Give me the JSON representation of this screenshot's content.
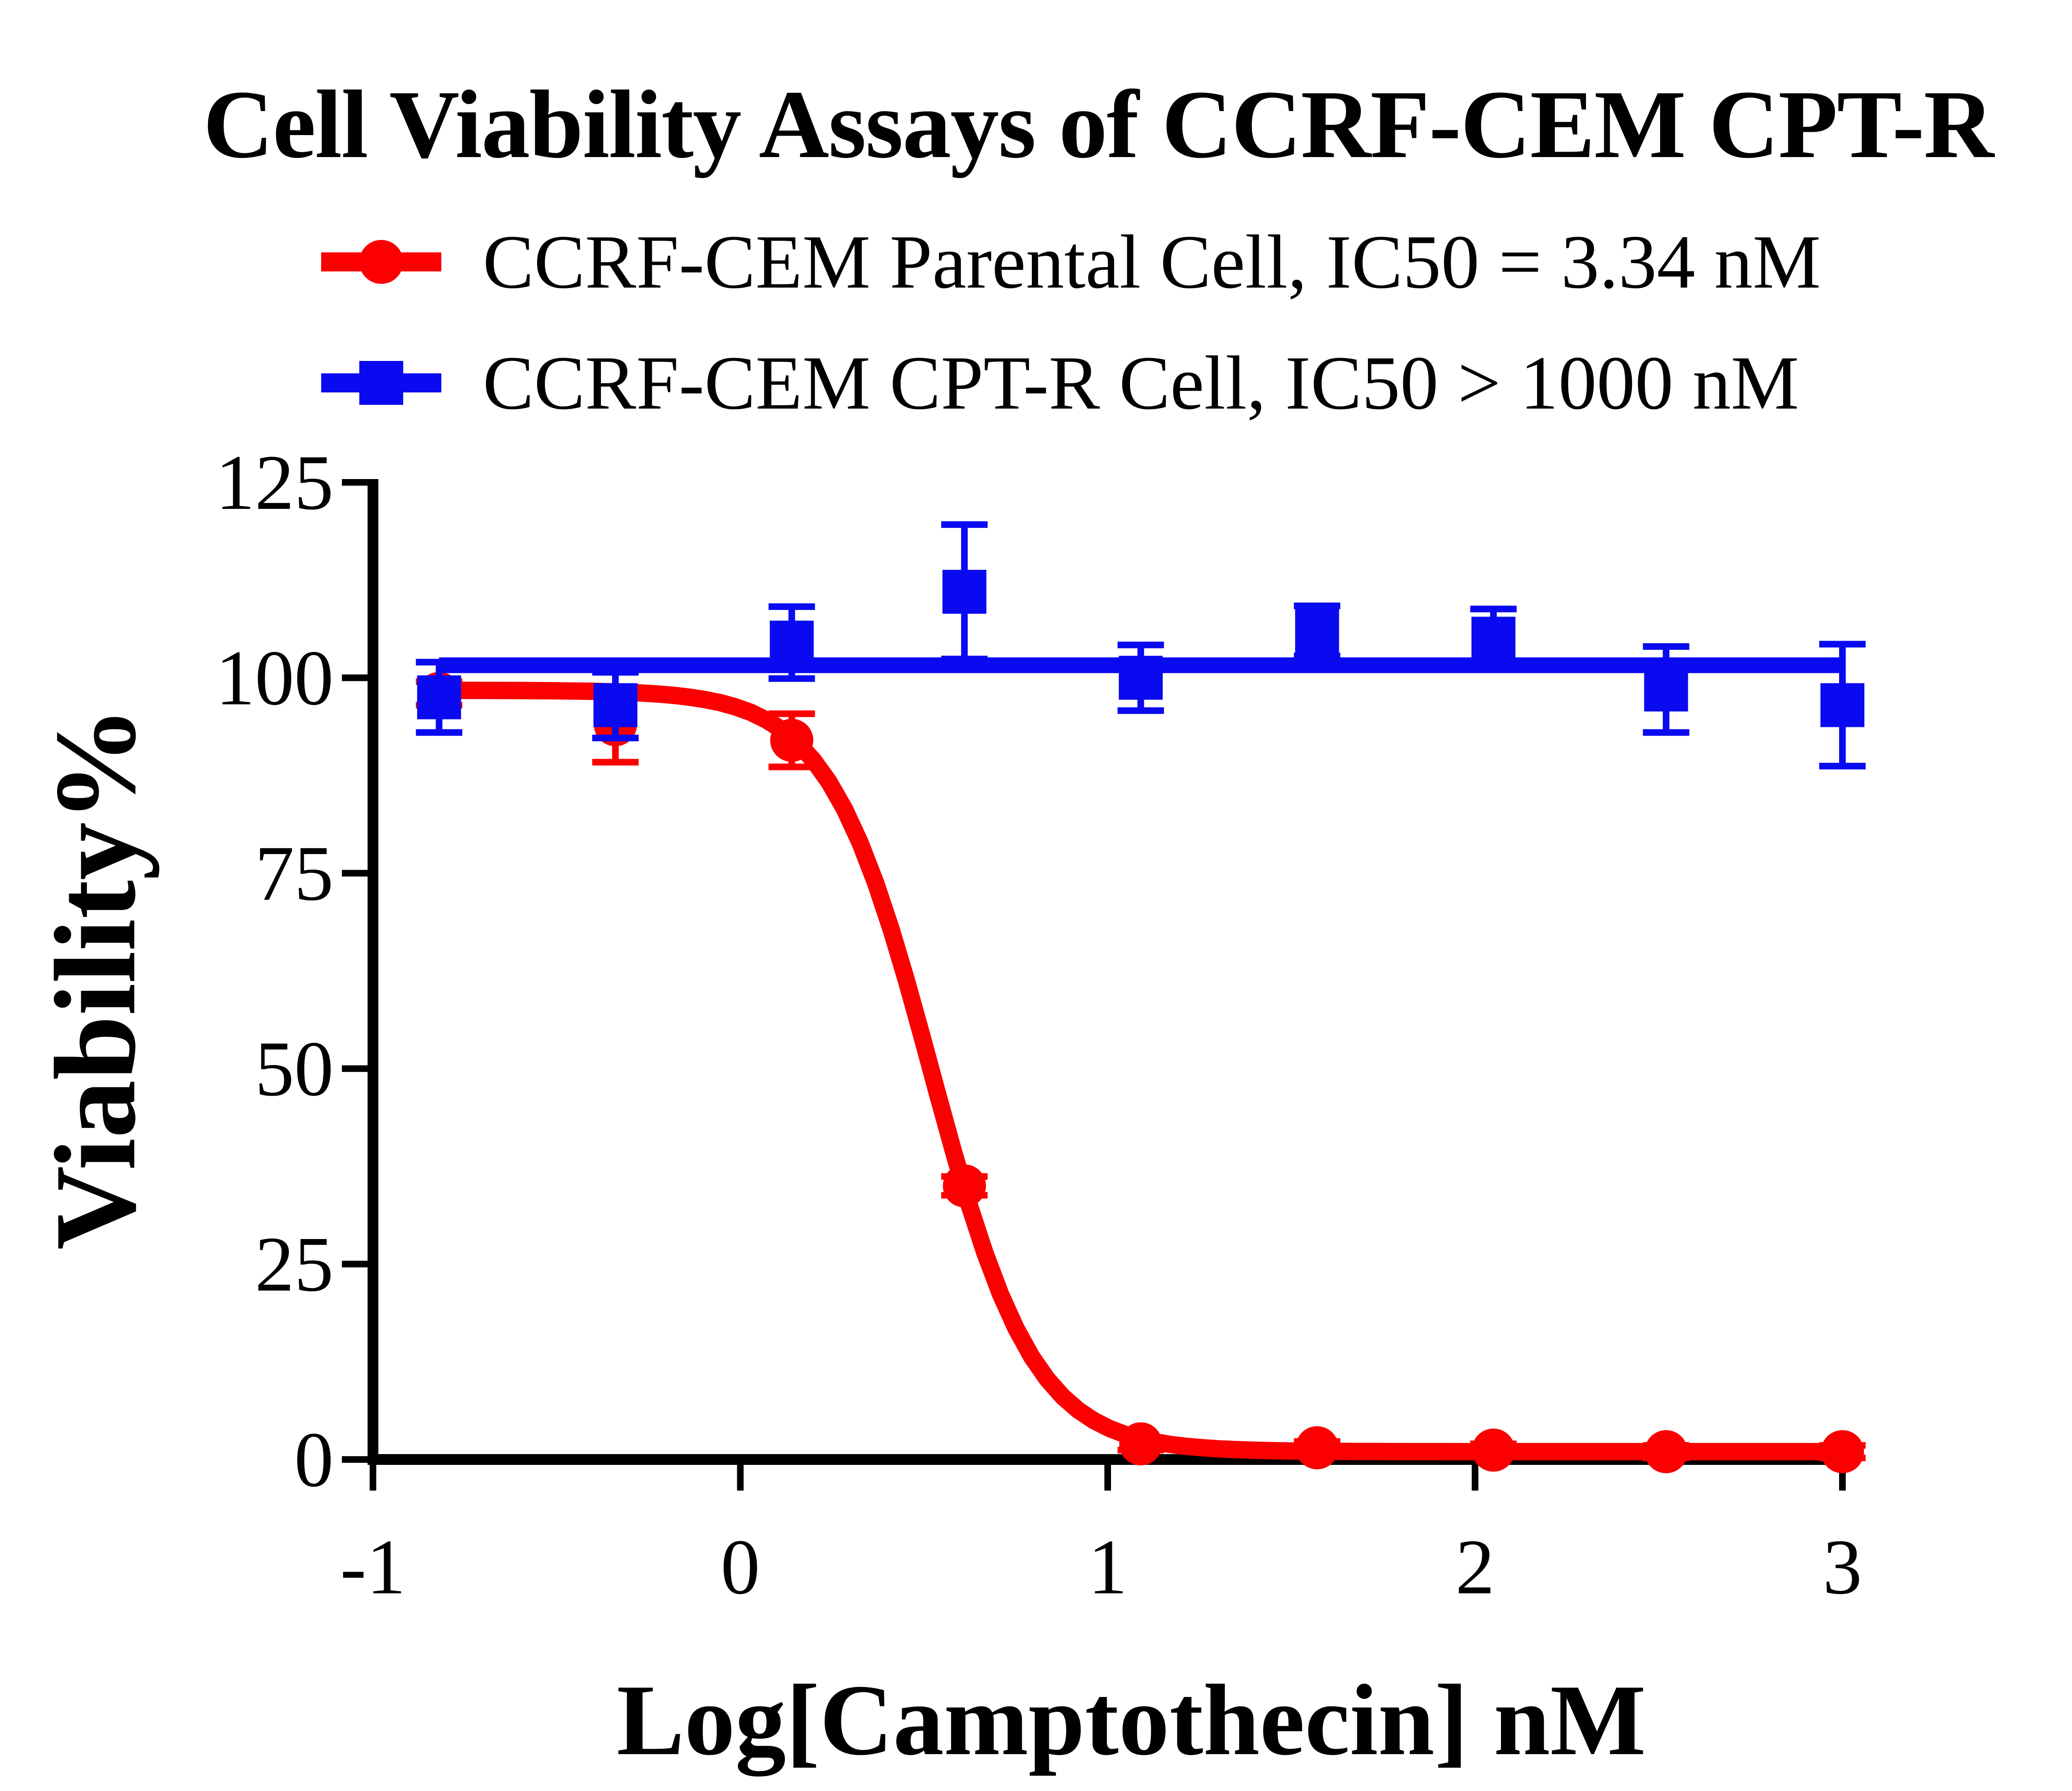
{
  "title": "Cell Viability Assays of CCRF-CEM CPT-R",
  "background_color": "#ffffff",
  "axis_color": "#000000",
  "legend": [
    {
      "label": "CCRF-CEM Parental Cell, IC50 = 3.34 nM",
      "color": "#fa0000",
      "marker": "circle"
    },
    {
      "label": "CCRF-CEM CPT-R Cell, IC50 > 1000 nM",
      "color": "#0a0af0",
      "marker": "square"
    }
  ],
  "chart_data": {
    "type": "line",
    "title": "Cell Viability Assays of CCRF-CEM CPT-R",
    "xlabel": "Log[Camptothecin] nM",
    "ylabel": "Viability%",
    "xlim": [
      -1,
      3
    ],
    "ylim": [
      0,
      125
    ],
    "x_ticks": [
      -1,
      0,
      1,
      2,
      3
    ],
    "y_ticks": [
      0,
      25,
      50,
      75,
      100,
      125
    ],
    "grid": false,
    "legend_position": "top-left above plot",
    "series": [
      {
        "name": "CCRF-CEM Parental Cell",
        "ic50_label": "IC50 = 3.34 nM",
        "color": "#fa0000",
        "marker": "circle",
        "x": [
          -0.82,
          -0.34,
          0.14,
          0.61,
          1.09,
          1.57,
          2.05,
          2.52,
          3.0
        ],
        "y": [
          98,
          94,
          92,
          35,
          2,
          1.5,
          1.2,
          1.0,
          1.0
        ],
        "yerr": [
          1.5,
          4.8,
          3.4,
          1.2,
          0.8,
          0.8,
          0.8,
          0.8,
          0.8
        ],
        "fit": {
          "type": "sigmoid",
          "top": 98.4,
          "bottom": 1.0,
          "logIC50": 0.52,
          "hillslope": 3.1
        }
      },
      {
        "name": "CCRF-CEM CPT-R Cell",
        "ic50_label": "IC50 > 1000 nM",
        "color": "#0a0af0",
        "marker": "square",
        "x": [
          -0.82,
          -0.34,
          0.14,
          0.61,
          1.09,
          1.57,
          2.05,
          2.52,
          3.0
        ],
        "y": [
          97.5,
          96.5,
          104.5,
          111,
          100,
          106,
          105,
          98.5,
          96.5
        ],
        "yerr": [
          4.5,
          4.2,
          4.6,
          8.6,
          4.2,
          3.2,
          3.8,
          5.5,
          7.8
        ],
        "fit": {
          "type": "flat",
          "value": 101.6
        }
      }
    ]
  }
}
